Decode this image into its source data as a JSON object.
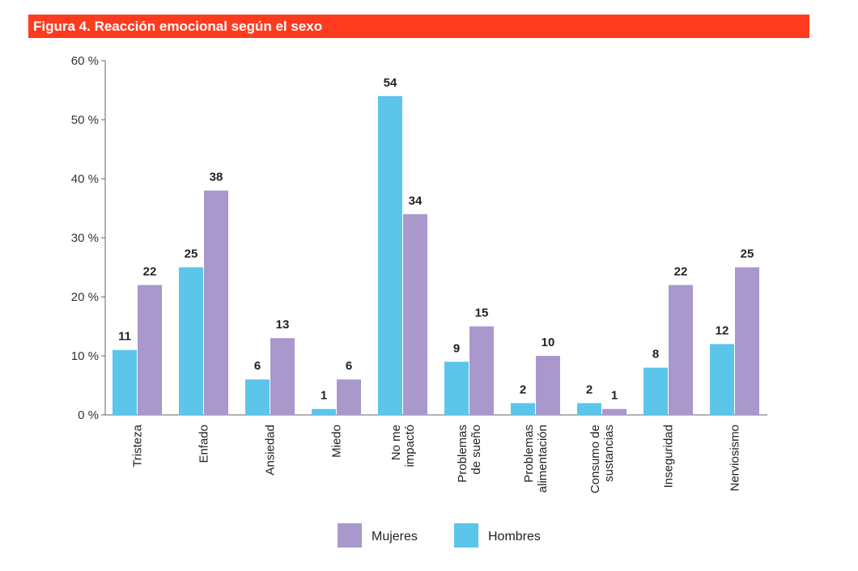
{
  "title": "Figura 4. Reacción emocional según el sexo",
  "chart_data": {
    "type": "bar",
    "title": "Figura 4. Reacción emocional según el sexo",
    "xlabel": "",
    "ylabel": "",
    "ylim": [
      0,
      60
    ],
    "yticks": [
      0,
      10,
      20,
      30,
      40,
      50,
      60
    ],
    "ytick_labels": [
      "0 %",
      "10 %",
      "20 %",
      "30 %",
      "40 %",
      "50 %",
      "60 %"
    ],
    "categories": [
      [
        "Tristeza"
      ],
      [
        "Enfado"
      ],
      [
        "Ansiedad"
      ],
      [
        "Miedo"
      ],
      [
        "No me",
        "impactó"
      ],
      [
        "Problemas",
        "de sueño"
      ],
      [
        "Problemas",
        "alimentación"
      ],
      [
        "Consumo de",
        "sustancias"
      ],
      [
        "Inseguridad"
      ],
      [
        "Nerviosismo"
      ]
    ],
    "series": [
      {
        "name": "Hombres",
        "color": "#5bc5ea",
        "values": [
          11,
          25,
          6,
          1,
          54,
          9,
          2,
          2,
          8,
          12
        ]
      },
      {
        "name": "Mujeres",
        "color": "#a898cc",
        "values": [
          22,
          38,
          13,
          6,
          34,
          15,
          10,
          1,
          22,
          25
        ]
      }
    ],
    "legend": {
      "placement": "bottom-center",
      "order": [
        "Mujeres",
        "Hombres"
      ]
    },
    "grid": false
  }
}
